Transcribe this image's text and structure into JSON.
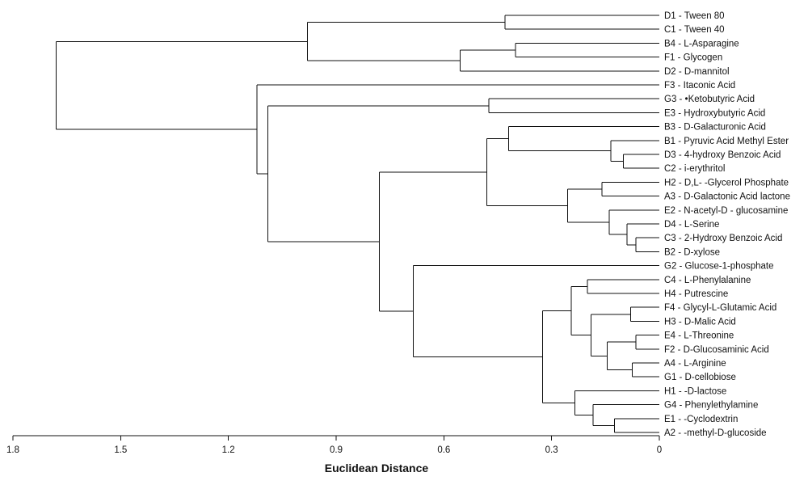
{
  "chart_data": {
    "type": "dendrogram",
    "orientation": "horizontal",
    "xlabel": "Euclidean Distance",
    "xlim": [
      1.8,
      0
    ],
    "x_ticks": [
      {
        "value": 1.8,
        "label": "1.8"
      },
      {
        "value": 1.5,
        "label": "1.5"
      },
      {
        "value": 1.2,
        "label": "1.2"
      },
      {
        "value": 0.9,
        "label": "0.9"
      },
      {
        "value": 0.6,
        "label": "0.6"
      },
      {
        "value": 0.3,
        "label": "0.3"
      },
      {
        "value": 0,
        "label": "0"
      }
    ],
    "leaves": [
      {
        "id": "D1",
        "label": "D1 - Tween 80"
      },
      {
        "id": "C1",
        "label": "C1 - Tween 40"
      },
      {
        "id": "B4",
        "label": "B4 - L-Asparagine"
      },
      {
        "id": "F1",
        "label": "F1 - Glycogen"
      },
      {
        "id": "D2",
        "label": "D2 - D-mannitol"
      },
      {
        "id": "F3",
        "label": "F3 - Itaconic Acid"
      },
      {
        "id": "G3",
        "label": "G3 -  •Ketobutyric Acid"
      },
      {
        "id": "E3",
        "label": "E3 - Hydroxybutyric Acid"
      },
      {
        "id": "B3",
        "label": "B3 - D-Galacturonic Acid"
      },
      {
        "id": "B1",
        "label": "B1 - Pyruvic Acid Methyl Ester"
      },
      {
        "id": "D3",
        "label": "D3 - 4-hydroxy Benzoic Acid"
      },
      {
        "id": "C2",
        "label": "C2 - i-erythritol"
      },
      {
        "id": "H2",
        "label": "H2 - D,L-  -Glycerol Phosphate"
      },
      {
        "id": "A3",
        "label": "A3 - D-Galactonic Acid lactone"
      },
      {
        "id": "E2",
        "label": "E2 - N-acetyl-D  - glucosamine"
      },
      {
        "id": "D4",
        "label": "D4 - L-Serine"
      },
      {
        "id": "C3",
        "label": "C3 - 2-Hydroxy Benzoic Acid"
      },
      {
        "id": "B2",
        "label": "B2 - D-xylose"
      },
      {
        "id": "G2",
        "label": "G2 - Glucose-1-phosphate"
      },
      {
        "id": "C4",
        "label": "C4 - L-Phenylalanine"
      },
      {
        "id": "H4",
        "label": "H4 - Putrescine"
      },
      {
        "id": "F4",
        "label": "F4 - Glycyl-L-Glutamic Acid"
      },
      {
        "id": "H3",
        "label": "H3 - D-Malic Acid"
      },
      {
        "id": "E4",
        "label": "E4 - L-Threonine"
      },
      {
        "id": "F2",
        "label": "F2 - D-Glucosaminic Acid"
      },
      {
        "id": "A4",
        "label": "A4 - L-Arginine"
      },
      {
        "id": "G1",
        "label": "G1 - D-cellobiose"
      },
      {
        "id": "H1",
        "label": "H1 -  -D-lactose"
      },
      {
        "id": "G4",
        "label": "G4 - Phenylethylamine"
      },
      {
        "id": "E1",
        "label": "E1 -  -Cyclodextrin"
      },
      {
        "id": "A2",
        "label": "A2 -  -methyl-D-glucoside"
      }
    ],
    "merges": [
      {
        "id": "n_D1C1",
        "children": [
          "D1",
          "C1"
        ],
        "height": 0.43
      },
      {
        "id": "n_B4F1",
        "children": [
          "B4",
          "F1"
        ],
        "height": 0.4
      },
      {
        "id": "n_B4F1D2",
        "children": [
          "n_B4F1",
          "D2"
        ],
        "height": 0.555
      },
      {
        "id": "n_top1",
        "children": [
          "n_D1C1",
          "n_B4F1D2"
        ],
        "height": 0.98
      },
      {
        "id": "n_G3E3",
        "children": [
          "G3",
          "E3"
        ],
        "height": 0.475
      },
      {
        "id": "n_D3C2",
        "children": [
          "D3",
          "C2"
        ],
        "height": 0.1
      },
      {
        "id": "n_B1D3C2",
        "children": [
          "B1",
          "n_D3C2"
        ],
        "height": 0.135
      },
      {
        "id": "n_B3grp",
        "children": [
          "B3",
          "n_B1D3C2"
        ],
        "height": 0.42
      },
      {
        "id": "n_H2A3",
        "children": [
          "H2",
          "A3"
        ],
        "height": 0.16
      },
      {
        "id": "n_C3B2",
        "children": [
          "C3",
          "B2"
        ],
        "height": 0.065
      },
      {
        "id": "n_D4C3B2",
        "children": [
          "D4",
          "n_C3B2"
        ],
        "height": 0.09
      },
      {
        "id": "n_E2grp",
        "children": [
          "E2",
          "n_D4C3B2"
        ],
        "height": 0.14
      },
      {
        "id": "n_H2grp",
        "children": [
          "n_H2A3",
          "n_E2grp"
        ],
        "height": 0.255
      },
      {
        "id": "n_mid",
        "children": [
          "n_B3grp",
          "n_H2grp"
        ],
        "height": 0.48
      },
      {
        "id": "n_C4H4",
        "children": [
          "C4",
          "H4"
        ],
        "height": 0.2
      },
      {
        "id": "n_F4H3",
        "children": [
          "F4",
          "H3"
        ],
        "height": 0.08
      },
      {
        "id": "n_E4F2",
        "children": [
          "E4",
          "F2"
        ],
        "height": 0.065
      },
      {
        "id": "n_A4G1",
        "children": [
          "A4",
          "G1"
        ],
        "height": 0.075
      },
      {
        "id": "n_E4grp",
        "children": [
          "n_E4F2",
          "n_A4G1"
        ],
        "height": 0.145
      },
      {
        "id": "n_F4grp",
        "children": [
          "n_F4H3",
          "n_E4grp"
        ],
        "height": 0.19
      },
      {
        "id": "n_C4grp",
        "children": [
          "n_C4H4",
          "n_F4grp"
        ],
        "height": 0.245
      },
      {
        "id": "n_E1A2",
        "children": [
          "E1",
          "A2"
        ],
        "height": 0.125
      },
      {
        "id": "n_G4grp",
        "children": [
          "G4",
          "n_E1A2"
        ],
        "height": 0.185
      },
      {
        "id": "n_H1grp",
        "children": [
          "H1",
          "n_G4grp"
        ],
        "height": 0.235
      },
      {
        "id": "n_bot",
        "children": [
          "n_C4grp",
          "n_H1grp"
        ],
        "height": 0.325
      },
      {
        "id": "n_G2grp",
        "children": [
          "G2",
          "n_bot"
        ],
        "height": 0.685
      },
      {
        "id": "n_lower",
        "children": [
          "n_mid",
          "n_G2grp"
        ],
        "height": 0.78
      },
      {
        "id": "n_G3lower",
        "children": [
          "n_G3E3",
          "n_lower"
        ],
        "height": 1.09
      },
      {
        "id": "n_F3grp",
        "children": [
          "F3",
          "n_G3lower"
        ],
        "height": 1.12
      },
      {
        "id": "n_root",
        "children": [
          "n_top1",
          "n_F3grp"
        ],
        "height": 1.68
      }
    ]
  }
}
